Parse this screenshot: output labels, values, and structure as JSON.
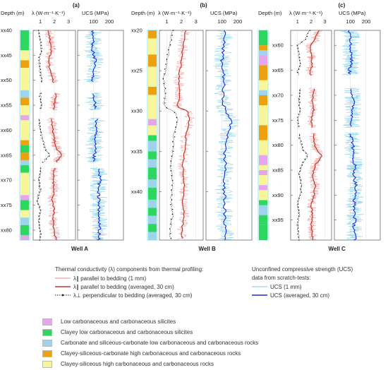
{
  "chart_data": {
    "type": "line",
    "panels": [
      {
        "letter": "(a)",
        "well": "Well A",
        "depth_prefix": "xx",
        "depth_range": [
          40,
          82
        ],
        "depth_ticks": [
          40,
          45,
          50,
          55,
          60,
          65,
          70,
          75,
          80
        ],
        "lithology": [
          {
            "from": 40,
            "to": 44,
            "lith": 2
          },
          {
            "from": 44,
            "to": 46,
            "lith": 5
          },
          {
            "from": 46,
            "to": 47.5,
            "lith": 4
          },
          {
            "from": 47.5,
            "to": 52,
            "lith": 5
          },
          {
            "from": 52,
            "to": 53.5,
            "lith": 3
          },
          {
            "from": 53.5,
            "to": 55,
            "lith": 4
          },
          {
            "from": 55,
            "to": 57,
            "lith": 5
          },
          {
            "from": 57,
            "to": 58,
            "lith": 1
          },
          {
            "from": 58,
            "to": 62,
            "lith": 5
          },
          {
            "from": 62,
            "to": 63,
            "lith": 4
          },
          {
            "from": 63,
            "to": 64.5,
            "lith": 2
          },
          {
            "from": 64.5,
            "to": 66,
            "lith": 4
          },
          {
            "from": 66,
            "to": 67,
            "lith": 3
          },
          {
            "from": 67,
            "to": 68.5,
            "lith": 2
          },
          {
            "from": 68.5,
            "to": 73,
            "lith": 5
          },
          {
            "from": 73,
            "to": 74,
            "lith": 1
          },
          {
            "from": 74,
            "to": 76,
            "lith": 2
          },
          {
            "from": 76,
            "to": 77.5,
            "lith": 5
          },
          {
            "from": 77.5,
            "to": 79,
            "lith": 3
          },
          {
            "from": 79,
            "to": 81,
            "lith": 2
          },
          {
            "from": 81,
            "to": 82,
            "lith": 1
          }
        ],
        "gaps": [
          [
            50.5,
            52.5
          ],
          [
            56,
            57.5
          ],
          [
            66.5,
            67.5
          ]
        ],
        "lambda_par_avg": [
          [
            40,
            1.6
          ],
          [
            42,
            1.7
          ],
          [
            44,
            1.8
          ],
          [
            46,
            1.6
          ],
          [
            48,
            1.7
          ],
          [
            50,
            1.9
          ],
          [
            53,
            2.1
          ],
          [
            55,
            2.0
          ],
          [
            58,
            1.8
          ],
          [
            60,
            1.9
          ],
          [
            62,
            2.0
          ],
          [
            64,
            2.2
          ],
          [
            65,
            2.6
          ],
          [
            66,
            2.2
          ],
          [
            68,
            2.0
          ],
          [
            70,
            1.9
          ],
          [
            72,
            2.0
          ],
          [
            74,
            1.8
          ],
          [
            76,
            2.0
          ],
          [
            78,
            1.9
          ],
          [
            80,
            2.0
          ],
          [
            82,
            2.1
          ]
        ],
        "lambda_perp_avg": [
          [
            40,
            0.9
          ],
          [
            42,
            1.0
          ],
          [
            44,
            1.1
          ],
          [
            46,
            0.9
          ],
          [
            48,
            1.0
          ],
          [
            50,
            1.1
          ],
          [
            53,
            1.0
          ],
          [
            55,
            1.1
          ],
          [
            58,
            0.9
          ],
          [
            60,
            1.0
          ],
          [
            62,
            1.2
          ],
          [
            64,
            1.4
          ],
          [
            65,
            1.7
          ],
          [
            66,
            1.3
          ],
          [
            68,
            1.0
          ],
          [
            70,
            0.9
          ],
          [
            72,
            1.0
          ],
          [
            74,
            0.8
          ],
          [
            76,
            1.0
          ],
          [
            78,
            0.9
          ],
          [
            80,
            1.0
          ],
          [
            82,
            1.0
          ]
        ],
        "ucs_avg": [
          [
            40,
            90
          ],
          [
            42,
            100
          ],
          [
            44,
            95
          ],
          [
            46,
            110
          ],
          [
            48,
            100
          ],
          [
            50,
            90
          ],
          [
            53,
            105
          ],
          [
            55,
            110
          ],
          [
            58,
            120
          ],
          [
            60,
            115
          ],
          [
            62,
            105
          ],
          [
            64,
            110
          ],
          [
            66,
            100
          ],
          [
            68,
            130
          ],
          [
            70,
            145
          ],
          [
            72,
            125
          ],
          [
            74,
            140
          ],
          [
            76,
            130
          ],
          [
            78,
            135
          ],
          [
            80,
            140
          ],
          [
            82,
            130
          ]
        ]
      },
      {
        "letter": "(b)",
        "well": "Well B",
        "depth_prefix": "xx",
        "depth_range": [
          20,
          46
        ],
        "depth_ticks": [
          20,
          25,
          30,
          35,
          40
        ],
        "lithology": [
          {
            "from": 20,
            "to": 21,
            "lith": 4
          },
          {
            "from": 21,
            "to": 23,
            "lith": 5
          },
          {
            "from": 23,
            "to": 24.5,
            "lith": 4
          },
          {
            "from": 24.5,
            "to": 27,
            "lith": 5
          },
          {
            "from": 27,
            "to": 28,
            "lith": 4
          },
          {
            "from": 28,
            "to": 31,
            "lith": 5
          },
          {
            "from": 31,
            "to": 31.8,
            "lith": 1
          },
          {
            "from": 31.8,
            "to": 33,
            "lith": 5
          },
          {
            "from": 33,
            "to": 33.7,
            "lith": 2
          },
          {
            "from": 33.7,
            "to": 35,
            "lith": 3
          },
          {
            "from": 35,
            "to": 36,
            "lith": 2
          },
          {
            "from": 36,
            "to": 37,
            "lith": 3
          },
          {
            "from": 37,
            "to": 38.5,
            "lith": 2
          },
          {
            "from": 38.5,
            "to": 39.5,
            "lith": 3
          },
          {
            "from": 39.5,
            "to": 41,
            "lith": 2
          },
          {
            "from": 41,
            "to": 42,
            "lith": 3
          },
          {
            "from": 42,
            "to": 43,
            "lith": 2
          },
          {
            "from": 43,
            "to": 44,
            "lith": 3
          },
          {
            "from": 44,
            "to": 45,
            "lith": 2
          },
          {
            "from": 45,
            "to": 46,
            "lith": 3
          }
        ],
        "gaps": [],
        "lambda_par_avg": [
          [
            20,
            2.3
          ],
          [
            22,
            2.1
          ],
          [
            24,
            2.0
          ],
          [
            26,
            1.8
          ],
          [
            28,
            1.9
          ],
          [
            29.5,
            1.7
          ],
          [
            30,
            2.4
          ],
          [
            31,
            2.6
          ],
          [
            33,
            2.3
          ],
          [
            35,
            2.2
          ],
          [
            37,
            2.1
          ],
          [
            39,
            2.2
          ],
          [
            41,
            2.1
          ],
          [
            43,
            2.2
          ],
          [
            45,
            2.0
          ],
          [
            46,
            2.1
          ]
        ],
        "lambda_perp_avg": [
          [
            20,
            1.4
          ],
          [
            22,
            1.2
          ],
          [
            24,
            1.0
          ],
          [
            26,
            0.8
          ],
          [
            28,
            0.9
          ],
          [
            29.5,
            0.8
          ],
          [
            30,
            1.5
          ],
          [
            31,
            1.8
          ],
          [
            33,
            1.5
          ],
          [
            35,
            1.4
          ],
          [
            37,
            1.3
          ],
          [
            39,
            1.4
          ],
          [
            41,
            1.3
          ],
          [
            43,
            1.4
          ],
          [
            45,
            1.2
          ],
          [
            46,
            1.3
          ]
        ],
        "ucs_avg": [
          [
            20,
            120
          ],
          [
            22,
            110
          ],
          [
            24,
            100
          ],
          [
            26,
            115
          ],
          [
            28,
            105
          ],
          [
            30,
            120
          ],
          [
            31,
            160
          ],
          [
            32,
            150
          ],
          [
            34,
            130
          ],
          [
            35,
            115
          ],
          [
            37,
            125
          ],
          [
            39,
            110
          ],
          [
            41,
            120
          ],
          [
            43,
            115
          ],
          [
            45,
            125
          ],
          [
            46,
            120
          ]
        ]
      },
      {
        "letter": "(c)",
        "well": "Well C",
        "depth_prefix": "xx",
        "depth_range": [
          57,
          99
        ],
        "depth_ticks": [
          60,
          65,
          70,
          75,
          80,
          85,
          90,
          95
        ],
        "lithology": [
          {
            "from": 57,
            "to": 60,
            "lith": 2
          },
          {
            "from": 60,
            "to": 61,
            "lith": 4
          },
          {
            "from": 61,
            "to": 62,
            "lith": 3
          },
          {
            "from": 62,
            "to": 64,
            "lith": 1
          },
          {
            "from": 64,
            "to": 67,
            "lith": 4
          },
          {
            "from": 67,
            "to": 69,
            "lith": 5
          },
          {
            "from": 69,
            "to": 70,
            "lith": 3
          },
          {
            "from": 70,
            "to": 72,
            "lith": 4
          },
          {
            "from": 72,
            "to": 76,
            "lith": 5
          },
          {
            "from": 76,
            "to": 79,
            "lith": 4
          },
          {
            "from": 79,
            "to": 82,
            "lith": 5
          },
          {
            "from": 82,
            "to": 84,
            "lith": 1
          },
          {
            "from": 84,
            "to": 85,
            "lith": 5
          },
          {
            "from": 85,
            "to": 86,
            "lith": 1
          },
          {
            "from": 86,
            "to": 88,
            "lith": 5
          },
          {
            "from": 88,
            "to": 89,
            "lith": 1
          },
          {
            "from": 89,
            "to": 91,
            "lith": 5
          },
          {
            "from": 91,
            "to": 92,
            "lith": 2
          },
          {
            "from": 92,
            "to": 94,
            "lith": 3
          },
          {
            "from": 94,
            "to": 96,
            "lith": 2
          },
          {
            "from": 96,
            "to": 99,
            "lith": 2
          }
        ],
        "gaps": [
          [
            66,
            68.5
          ],
          [
            76.5,
            77.5
          ]
        ],
        "lambda_par_avg": [
          [
            57,
            2.6
          ],
          [
            58,
            2.4
          ],
          [
            59,
            2.3
          ],
          [
            60,
            1.9
          ],
          [
            62,
            2.0
          ],
          [
            64,
            2.1
          ],
          [
            65,
            1.9
          ],
          [
            69,
            2.2
          ],
          [
            71,
            2.1
          ],
          [
            73,
            2.2
          ],
          [
            75,
            2.0
          ],
          [
            79,
            2.2
          ],
          [
            81,
            2.4
          ],
          [
            82,
            2.8
          ],
          [
            84,
            2.3
          ],
          [
            86,
            2.1
          ],
          [
            88,
            2.3
          ],
          [
            90,
            2.2
          ],
          [
            92,
            2.0
          ],
          [
            94,
            2.1
          ],
          [
            96,
            2.0
          ],
          [
            98,
            2.1
          ]
        ],
        "lambda_perp_avg": [
          [
            57,
            1.9
          ],
          [
            58,
            1.7
          ],
          [
            59,
            1.5
          ],
          [
            60,
            1.0
          ],
          [
            62,
            1.1
          ],
          [
            64,
            1.2
          ],
          [
            65,
            1.0
          ],
          [
            69,
            1.2
          ],
          [
            71,
            1.1
          ],
          [
            73,
            1.2
          ],
          [
            75,
            1.0
          ],
          [
            79,
            1.2
          ],
          [
            81,
            1.4
          ],
          [
            82,
            1.8
          ],
          [
            84,
            1.3
          ],
          [
            86,
            1.1
          ],
          [
            88,
            1.3
          ],
          [
            90,
            1.2
          ],
          [
            92,
            1.0
          ],
          [
            94,
            1.1
          ],
          [
            96,
            1.0
          ],
          [
            98,
            1.1
          ]
        ],
        "ucs_avg": [
          [
            57,
            90
          ],
          [
            58,
            110
          ],
          [
            60,
            100
          ],
          [
            62,
            110
          ],
          [
            64,
            105
          ],
          [
            65,
            95
          ],
          [
            69,
            110
          ],
          [
            71,
            120
          ],
          [
            73,
            115
          ],
          [
            75,
            110
          ],
          [
            78,
            105
          ],
          [
            80,
            120
          ],
          [
            82,
            115
          ],
          [
            84,
            130
          ],
          [
            86,
            125
          ],
          [
            88,
            135
          ],
          [
            90,
            130
          ],
          [
            92,
            125
          ],
          [
            94,
            130
          ],
          [
            96,
            125
          ],
          [
            98,
            130
          ]
        ]
      }
    ],
    "lambda_axis": {
      "label": "λ (W·m⁻¹·K⁻¹)",
      "range": [
        0.5,
        3.5
      ],
      "ticks": [
        1,
        2,
        3
      ]
    },
    "ucs_axis": {
      "label": "UCS (MPa)",
      "range": [
        0,
        290
      ],
      "ticks": [
        100,
        200
      ]
    },
    "depth_label": "Depth (m)"
  },
  "legend": {
    "thermal": {
      "heading": "Thermal conductivity (λ) components from thermal profiling:",
      "items": [
        {
          "label": "λ∥ parallel to bedding (1 mm)",
          "color": "#f2a0a0"
        },
        {
          "label": "λ∥ parallel to bedding (averaged, 30 cm)",
          "color": "#c0392b"
        },
        {
          "label": "λ⊥ perpendicular to bedding (averaged, 30 cm)",
          "color": "#222222"
        }
      ]
    },
    "ucs": {
      "heading1": "Unconfined compressive strength (UCS)",
      "heading2": "data from scratch-tests:",
      "items": [
        {
          "label": "UCS (1 mm)",
          "color": "#8fd4ee"
        },
        {
          "label": "UCS (averaged, 30 cm)",
          "color": "#1a2bd0"
        }
      ]
    },
    "lithology": [
      {
        "label": "Low carbonaceous and carbonaceous silicites",
        "color": "#e5a6ee"
      },
      {
        "label": "Clayey low carbonaceous and carbonaceous silicites",
        "color": "#2ed860"
      },
      {
        "label": "Carbonate and siliceous-carbonate low carbonaceous and carbonaceous rocks",
        "color": "#9fd3ee"
      },
      {
        "label": "Clayey-siliceous-carbonate high carbonaceous and carbonaceous rocks",
        "color": "#eea10e"
      },
      {
        "label": "Clayey-siliceous high carbonaceous and carbonaceous rocks",
        "color": "#f9f59a"
      }
    ]
  }
}
